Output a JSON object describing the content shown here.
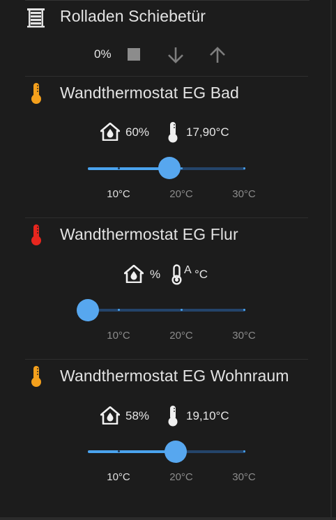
{
  "shutter": {
    "title": "Rolladen Schiebetür",
    "position": "0%",
    "icon": "window-shutter-icon"
  },
  "thermostats": [
    {
      "title": "Wandthermostat EG Bad",
      "humidity": "60%",
      "temperature": "17,90°C",
      "icon_color": "#f4a01c",
      "setpoint_fraction": 0.5,
      "ticks": [
        "10°C",
        "20°C",
        "30°C"
      ],
      "active_ticks": [
        true,
        true,
        false
      ]
    },
    {
      "title": "Wandthermostat EG Flur",
      "humidity": "%",
      "temp_glyph": "A",
      "temperature": "°C",
      "icon_color": "#e8261e",
      "setpoint_fraction": 0.0,
      "ticks": [
        "10°C",
        "20°C",
        "30°C"
      ],
      "active_ticks": [
        false,
        false,
        false
      ]
    },
    {
      "title": "Wandthermostat EG Wohnraum",
      "humidity": "58%",
      "temperature": "19,10°C",
      "icon_color": "#f4a01c",
      "setpoint_fraction": 0.55,
      "ticks": [
        "10°C",
        "20°C",
        "30°C"
      ],
      "active_ticks": [
        true,
        true,
        false
      ]
    }
  ],
  "colors": {
    "background": "#1c1c1c",
    "accent": "#57a7ef",
    "track": "#24446a"
  }
}
